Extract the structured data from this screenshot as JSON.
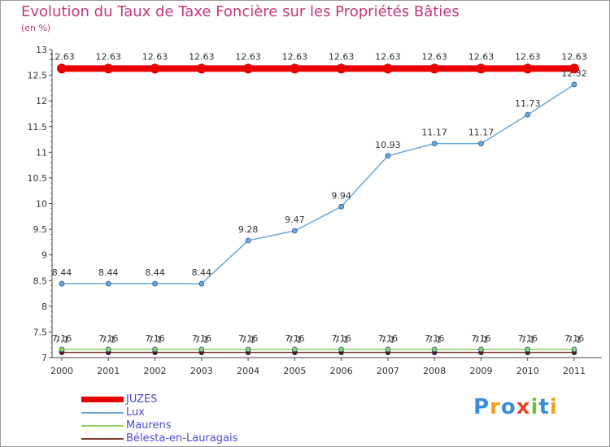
{
  "title": "Evolution du Taux de Taxe Foncière sur les Propriétés Bâties",
  "unit": "(en %)",
  "logo": "Proxiti",
  "chart_data": {
    "type": "line",
    "categories": [
      "2000",
      "2001",
      "2002",
      "2003",
      "2004",
      "2005",
      "2006",
      "2007",
      "2008",
      "2009",
      "2010",
      "2011"
    ],
    "ylim": [
      7,
      13
    ],
    "yticks": [
      "7",
      "7.5",
      "8",
      "8.5",
      "9",
      "9.5",
      "10",
      "10.5",
      "11",
      "11.5",
      "12",
      "12.5",
      "13"
    ],
    "series": [
      {
        "name": "JUZES",
        "color": "#e80000",
        "values": [
          12.63,
          12.63,
          12.63,
          12.63,
          12.63,
          12.63,
          12.63,
          12.63,
          12.63,
          12.63,
          12.63,
          12.63
        ],
        "labels": [
          "12.63",
          "12.63",
          "12.63",
          "12.63",
          "12.63",
          "12.63",
          "12.63",
          "12.63",
          "12.63",
          "12.63",
          "12.63",
          "12.63"
        ]
      },
      {
        "name": "Lux",
        "color": "#6aa8de",
        "values": [
          8.44,
          8.44,
          8.44,
          8.44,
          9.28,
          9.47,
          9.94,
          10.93,
          11.17,
          11.17,
          11.73,
          12.32
        ],
        "labels": [
          "8.44",
          "8.44",
          "8.44",
          "8.44",
          "9.28",
          "9.47",
          "9.94",
          "10.93",
          "11.17",
          "11.17",
          "11.73",
          "12.32"
        ]
      },
      {
        "name": "Maurens",
        "color": "#90d060",
        "values": [
          7.16,
          7.16,
          7.16,
          7.16,
          7.16,
          7.16,
          7.16,
          7.16,
          7.16,
          7.16,
          7.16,
          7.16
        ],
        "labels": [
          "7.16",
          "7.16",
          "7.16",
          "7.16",
          "7.16",
          "7.16",
          "7.16",
          "7.16",
          "7.16",
          "7.16",
          "7.16",
          "7.16"
        ]
      },
      {
        "name": "Bélesta-en-Lauragais",
        "color": "#7a3a2a",
        "values": [
          7.1,
          7.1,
          7.1,
          7.1,
          7.1,
          7.1,
          7.1,
          7.1,
          7.1,
          7.1,
          7.1,
          7.1
        ],
        "labels": [
          "7.1",
          "7.1",
          "7.1",
          "7.1",
          "7.1",
          "7.1",
          "7.1",
          "7.1",
          "7.1",
          "7.1",
          "7.1",
          "7.1"
        ]
      }
    ]
  }
}
